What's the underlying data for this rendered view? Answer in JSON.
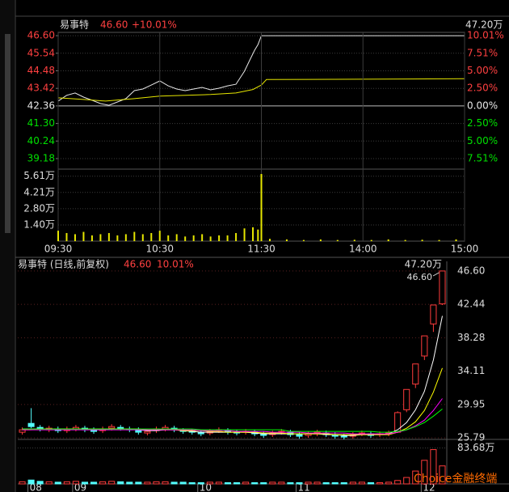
{
  "chart_data": [
    {
      "type": "line",
      "title": "易事特",
      "price_label": "46.60",
      "change_label": "+10.01%",
      "annotation": "47.20万",
      "xlim": [
        0,
        240
      ],
      "ylim": [
        38.69,
        46.8
      ],
      "y2lim": [
        -8.66,
        10.48
      ],
      "yticks": [
        {
          "value": 46.6,
          "label": "46.60"
        },
        45.54,
        44.48,
        43.42,
        42.36,
        {
          "value": 41.3,
          "label": "41.30"
        },
        40.24,
        39.18
      ],
      "y2ticks": [
        {
          "value": 10.01,
          "label": "10.01%"
        },
        {
          "value": 7.51,
          "label": "7.51%"
        },
        {
          "value": 5,
          "label": "5.00%"
        },
        {
          "value": 2.5,
          "label": "2.50%"
        },
        {
          "value": 0,
          "label": "0.00%"
        },
        {
          "value": -2.5,
          "label": "2.50%"
        },
        {
          "value": -5,
          "label": "5.00%"
        },
        {
          "value": -7.51,
          "label": "7.51%"
        }
      ],
      "series": [
        {
          "color": "#e8e8e8",
          "x": [
            0,
            5,
            10,
            15,
            20,
            25,
            30,
            35,
            40,
            45,
            50,
            55,
            60,
            65,
            70,
            75,
            80,
            85,
            90,
            95,
            100,
            105,
            110,
            113,
            116,
            118,
            120,
            180,
            240
          ],
          "values": [
            42.65,
            43.0,
            43.14,
            42.89,
            42.7,
            42.5,
            42.4,
            42.6,
            42.8,
            43.28,
            43.38,
            43.62,
            43.87,
            43.57,
            43.38,
            43.28,
            43.38,
            43.48,
            43.33,
            43.43,
            43.57,
            43.67,
            44.45,
            45.09,
            45.72,
            46.06,
            46.6,
            46.6,
            46.6
          ]
        },
        {
          "color": "#e6e600",
          "x": [
            0,
            15,
            28,
            45,
            60,
            90,
            105,
            115,
            120,
            123,
            240
          ],
          "values": [
            42.85,
            42.75,
            42.65,
            42.8,
            42.95,
            43.05,
            43.14,
            43.35,
            43.62,
            43.95,
            44.0
          ]
        }
      ]
    },
    {
      "type": "bar",
      "color": "#e6e600",
      "xlim": [
        0,
        240
      ],
      "ylim": [
        0,
        5.94
      ],
      "xticks": [
        {
          "value": 0,
          "label": "09:30"
        },
        {
          "value": 60,
          "label": "10:30"
        },
        {
          "value": 120,
          "label": "11:30"
        },
        {
          "value": 180,
          "label": "14:00"
        },
        {
          "value": 240,
          "label": "15:00"
        }
      ],
      "yticks": [
        {
          "value": 5.61,
          "label": "5.61万"
        },
        {
          "value": 4.21,
          "label": "4.21万"
        },
        {
          "value": 2.8,
          "label": "2.80万"
        },
        {
          "value": 1.4,
          "label": "1.40万"
        }
      ],
      "x": [
        0,
        5,
        10,
        15,
        20,
        25,
        30,
        35,
        40,
        45,
        50,
        55,
        60,
        65,
        70,
        75,
        80,
        85,
        90,
        95,
        100,
        105,
        110,
        115,
        118,
        120,
        125,
        135,
        145,
        155,
        165,
        175,
        185,
        195,
        205,
        215,
        225,
        235
      ],
      "values": [
        0.9,
        0.7,
        0.6,
        0.8,
        0.5,
        0.6,
        0.7,
        0.5,
        0.6,
        0.8,
        0.6,
        0.7,
        0.9,
        0.5,
        0.6,
        0.4,
        0.5,
        0.6,
        0.4,
        0.5,
        0.5,
        0.7,
        1.1,
        1.2,
        1.0,
        5.8,
        0.2,
        0.15,
        0.1,
        0.15,
        0.1,
        0.12,
        0.1,
        0.15,
        0.1,
        0.12,
        0.1,
        0.15
      ]
    },
    {
      "type": "candlestick",
      "title": "易事特 (日线,前复权)",
      "price_label": "46.60",
      "change_label": "10.01%",
      "annotations": [
        "47.20万",
        "46.60"
      ],
      "up_color": "#ff3c3c",
      "down_color": "#54fcfc",
      "ylim": [
        25.3,
        47.8
      ],
      "yticks": [
        {
          "value": 46.6,
          "label": "46.60"
        },
        42.44,
        38.28,
        34.11,
        29.95,
        25.79
      ],
      "categories": [
        null,
        "08",
        null,
        null,
        null,
        null,
        "09",
        null,
        null,
        null,
        null,
        null,
        null,
        null,
        null,
        null,
        null,
        null,
        null,
        null,
        "10",
        null,
        null,
        null,
        null,
        null,
        null,
        null,
        null,
        null,
        null,
        "11",
        null,
        null,
        null,
        null,
        null,
        null,
        null,
        null,
        null,
        null,
        null,
        null,
        null,
        "12",
        null,
        null
      ],
      "open": [
        26.5,
        27.6,
        27.1,
        26.8,
        26.9,
        26.7,
        26.9,
        27.0,
        26.8,
        26.7,
        27.0,
        27.1,
        26.9,
        26.8,
        26.4,
        26.7,
        26.9,
        27.0,
        26.7,
        26.6,
        26.5,
        26.4,
        26.7,
        26.7,
        26.5,
        26.5,
        26.5,
        26.3,
        26.2,
        26.5,
        26.5,
        26.2,
        26.1,
        26.3,
        26.4,
        26.2,
        26.0,
        26.0,
        26.3,
        26.3,
        26.2,
        26.3,
        26.5,
        29.3,
        32.5,
        36.0,
        40.0,
        42.5
      ],
      "high": [
        27.1,
        29.5,
        27.4,
        27.3,
        27.2,
        27.2,
        27.4,
        27.3,
        27.1,
        27.2,
        27.5,
        27.4,
        27.2,
        27.1,
        26.9,
        27.2,
        27.4,
        27.3,
        27.0,
        26.9,
        26.8,
        26.9,
        27.1,
        27.0,
        26.8,
        26.9,
        26.8,
        26.6,
        26.7,
        26.9,
        26.8,
        26.5,
        26.6,
        26.8,
        26.7,
        26.5,
        26.3,
        26.5,
        26.7,
        26.6,
        26.6,
        26.7,
        29.1,
        31.83,
        35.01,
        38.51,
        42.36,
        46.6
      ],
      "low": [
        26.2,
        27.0,
        26.6,
        26.5,
        26.4,
        26.4,
        26.6,
        26.5,
        26.3,
        26.4,
        26.7,
        26.7,
        26.5,
        26.2,
        26.1,
        26.4,
        26.6,
        26.5,
        26.3,
        26.2,
        26.0,
        26.1,
        26.4,
        26.2,
        26.1,
        26.2,
        26.0,
        25.8,
        25.9,
        26.2,
        25.9,
        25.7,
        25.8,
        26.0,
        25.9,
        25.7,
        25.6,
        25.7,
        26.0,
        25.8,
        25.9,
        26.0,
        26.4,
        29.0,
        32.0,
        35.5,
        39.0,
        42.36
      ],
      "close": [
        26.8,
        27.2,
        26.9,
        27.0,
        26.7,
        26.9,
        27.1,
        26.8,
        26.6,
        26.9,
        27.2,
        27.0,
        26.8,
        26.5,
        26.6,
        26.9,
        27.1,
        26.8,
        26.6,
        26.5,
        26.3,
        26.6,
        26.8,
        26.5,
        26.4,
        26.6,
        26.3,
        26.1,
        26.4,
        26.6,
        26.2,
        26.0,
        26.3,
        26.5,
        26.2,
        26.0,
        25.9,
        26.2,
        26.4,
        26.1,
        26.3,
        26.4,
        28.94,
        31.83,
        35.01,
        38.51,
        42.36,
        46.6
      ],
      "series": [
        {
          "color": "#ffffff",
          "values": [
            26.9,
            26.9,
            26.9,
            26.9,
            26.9,
            26.9,
            26.9,
            26.9,
            26.8,
            26.8,
            26.9,
            26.9,
            26.9,
            26.8,
            26.7,
            26.7,
            26.8,
            26.8,
            26.7,
            26.6,
            26.5,
            26.5,
            26.5,
            26.5,
            26.5,
            26.5,
            26.4,
            26.3,
            26.3,
            26.3,
            26.3,
            26.3,
            26.3,
            26.3,
            26.2,
            26.2,
            26.1,
            26.1,
            26.2,
            26.2,
            26.2,
            26.3,
            26.8,
            27.7,
            29.3,
            31.6,
            35.5,
            41.0
          ]
        },
        {
          "color": "#ffff00",
          "values": [
            26.8,
            26.8,
            26.9,
            26.9,
            26.9,
            26.9,
            26.9,
            26.9,
            26.9,
            26.9,
            26.9,
            26.9,
            26.9,
            26.9,
            26.8,
            26.8,
            26.8,
            26.8,
            26.7,
            26.7,
            26.7,
            26.6,
            26.6,
            26.5,
            26.5,
            26.5,
            26.5,
            26.4,
            26.4,
            26.4,
            26.3,
            26.3,
            26.3,
            26.3,
            26.3,
            26.2,
            26.2,
            26.2,
            26.2,
            26.2,
            26.2,
            26.2,
            26.5,
            27.0,
            27.8,
            29.2,
            31.5,
            34.5
          ]
        },
        {
          "color": "#ff00ff",
          "values": [
            26.8,
            26.8,
            26.8,
            26.8,
            26.8,
            26.8,
            26.8,
            26.8,
            26.8,
            26.8,
            26.8,
            26.8,
            26.8,
            26.8,
            26.8,
            26.8,
            26.8,
            26.8,
            26.8,
            26.8,
            26.7,
            26.7,
            26.7,
            26.7,
            26.6,
            26.6,
            26.6,
            26.6,
            26.5,
            26.5,
            26.5,
            26.5,
            26.4,
            26.4,
            26.4,
            26.4,
            26.4,
            26.3,
            26.3,
            26.3,
            26.3,
            26.3,
            26.5,
            26.8,
            27.3,
            28.0,
            29.2,
            30.7
          ]
        },
        {
          "color": "#00ff00",
          "values": [
            26.9,
            26.9,
            26.9,
            26.9,
            26.9,
            26.9,
            26.9,
            26.9,
            26.9,
            26.9,
            26.9,
            26.9,
            26.9,
            26.9,
            26.9,
            26.9,
            26.9,
            26.9,
            26.9,
            26.9,
            26.8,
            26.8,
            26.8,
            26.8,
            26.8,
            26.8,
            26.8,
            26.8,
            26.8,
            26.8,
            26.6,
            26.6,
            26.6,
            26.6,
            26.6,
            26.6,
            26.6,
            26.6,
            26.6,
            26.6,
            26.5,
            26.5,
            26.6,
            26.8,
            27.2,
            27.7,
            28.5,
            29.4
          ]
        }
      ]
    },
    {
      "type": "bar",
      "ylim": [
        0,
        100
      ],
      "yticks": [
        {
          "value": 83.68,
          "label": "83.68万"
        }
      ],
      "values": [
        5,
        9,
        6,
        5,
        4,
        5,
        6,
        4,
        4,
        5,
        6,
        5,
        4,
        4,
        4,
        5,
        5,
        4,
        4,
        3,
        3,
        4,
        4,
        3,
        3,
        4,
        3,
        3,
        4,
        4,
        3,
        3,
        4,
        4,
        3,
        3,
        3,
        4,
        4,
        3,
        3,
        4,
        8,
        15,
        30,
        55,
        80,
        42
      ]
    }
  ],
  "watermark": "Choice金融终端"
}
